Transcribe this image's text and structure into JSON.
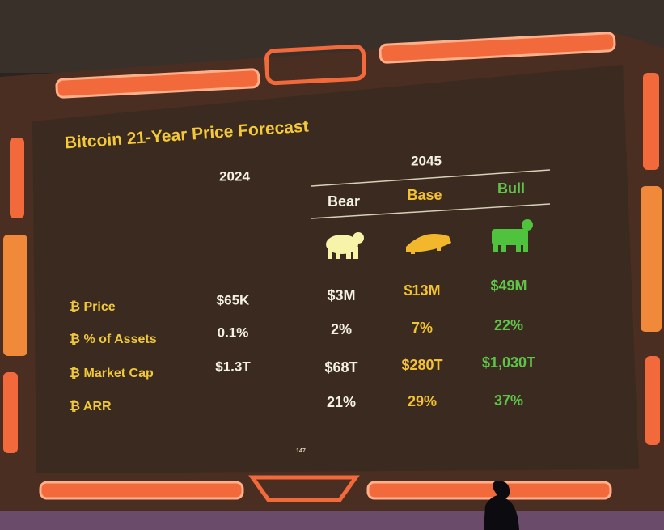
{
  "title": "Bitcoin 21-Year Price Forecast",
  "current_year": "2024",
  "forecast_year": "2045",
  "scenarios": [
    "Bear",
    "Base",
    "Bull"
  ],
  "rows": [
    {
      "label": "₿ Price",
      "current": "$65K",
      "forecast": [
        "$3M",
        "$13M",
        "$49M"
      ]
    },
    {
      "label": "₿ % of Assets",
      "current": "0.1%",
      "forecast": [
        "2%",
        "7%",
        "22%"
      ]
    },
    {
      "label": "₿ Market Cap",
      "current": "$1.3T",
      "forecast": [
        "$68T",
        "$280T",
        "$1,030T"
      ]
    },
    {
      "label": "₿ ARR",
      "current": "",
      "forecast": [
        "21%",
        "29%",
        "37%"
      ]
    }
  ],
  "page_number": "147"
}
